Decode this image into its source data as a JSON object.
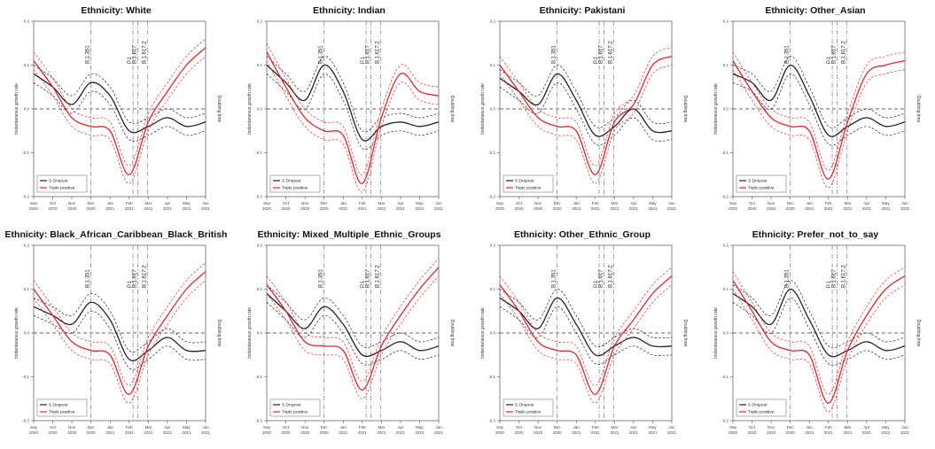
{
  "chart_data": {
    "type": "line",
    "x": [
      "Sep 2020",
      "Oct 2020",
      "Nov 2020",
      "Dec 2020",
      "Jan 2021",
      "Feb 2021",
      "Mar 2021",
      "Apr 2021",
      "May 2021",
      "Jun 2021"
    ],
    "ylabel": "Instantaneous growth rate",
    "y2label": "Doubling time",
    "xlim": [
      0,
      9
    ],
    "ylim": [
      -0.2,
      0.2
    ],
    "variants": [
      {
        "label": "B.1.351",
        "x": 3.0
      },
      {
        "label": "P.1",
        "x": 5.2
      },
      {
        "label": "B.1.617",
        "x": 5.45
      },
      {
        "label": "B.1.617.2",
        "x": 5.95
      }
    ],
    "legend": {
      "position": "bottom-left",
      "entries": [
        "S Dropout",
        "Triple positive"
      ]
    },
    "colors": {
      "s_dropout": "#222222",
      "triple_positive": "#e8242c"
    },
    "panels": [
      {
        "title": "Ethnicity: White",
        "series": [
          {
            "name": "S Dropout",
            "values": [
              0.08,
              0.05,
              0.01,
              0.06,
              0.03,
              -0.05,
              -0.04,
              -0.02,
              -0.04,
              -0.03
            ]
          },
          {
            "name": "Triple positive",
            "values": [
              0.11,
              0.05,
              -0.02,
              -0.04,
              -0.05,
              -0.15,
              -0.03,
              0.04,
              0.1,
              0.14
            ]
          }
        ]
      },
      {
        "title": "Ethnicity: Indian",
        "series": [
          {
            "name": "S Dropout",
            "values": [
              0.1,
              0.06,
              0.02,
              0.1,
              0.04,
              -0.07,
              -0.04,
              -0.03,
              -0.04,
              -0.03
            ]
          },
          {
            "name": "Triple positive",
            "values": [
              0.13,
              0.05,
              -0.02,
              -0.05,
              -0.06,
              -0.17,
              -0.02,
              0.08,
              0.04,
              0.03
            ]
          }
        ]
      },
      {
        "title": "Ethnicity: Pakistani",
        "series": [
          {
            "name": "S Dropout",
            "values": [
              0.07,
              0.04,
              0.01,
              0.08,
              0.02,
              -0.06,
              -0.04,
              0.0,
              -0.05,
              -0.05
            ]
          },
          {
            "name": "Triple positive",
            "values": [
              0.1,
              0.04,
              -0.02,
              -0.04,
              -0.05,
              -0.15,
              -0.03,
              0.01,
              0.1,
              0.12
            ]
          }
        ]
      },
      {
        "title": "Ethnicity: Other_Asian",
        "series": [
          {
            "name": "S Dropout",
            "values": [
              0.08,
              0.06,
              0.02,
              0.1,
              0.03,
              -0.06,
              -0.04,
              -0.02,
              -0.04,
              -0.03
            ]
          },
          {
            "name": "Triple positive",
            "values": [
              0.11,
              0.04,
              -0.02,
              -0.04,
              -0.05,
              -0.16,
              -0.03,
              0.08,
              0.1,
              0.11
            ]
          }
        ]
      },
      {
        "title": "Ethnicity: Black_African_Caribbean_Black_British",
        "series": [
          {
            "name": "S Dropout",
            "values": [
              0.06,
              0.04,
              0.02,
              0.07,
              0.03,
              -0.06,
              -0.04,
              -0.01,
              -0.04,
              -0.04
            ]
          },
          {
            "name": "Triple positive",
            "values": [
              0.1,
              0.04,
              -0.02,
              -0.04,
              -0.05,
              -0.14,
              -0.03,
              0.04,
              0.1,
              0.14
            ]
          }
        ]
      },
      {
        "title": "Ethnicity: Mixed_Multiple_Ethnic_Groups",
        "series": [
          {
            "name": "S Dropout",
            "values": [
              0.09,
              0.05,
              0.01,
              0.06,
              0.02,
              -0.05,
              -0.04,
              -0.02,
              -0.04,
              -0.03
            ]
          },
          {
            "name": "Triple positive",
            "values": [
              0.11,
              0.05,
              -0.02,
              -0.03,
              -0.04,
              -0.13,
              -0.03,
              0.04,
              0.1,
              0.15
            ]
          }
        ]
      },
      {
        "title": "Ethnicity: Other_Ethnic_Group",
        "series": [
          {
            "name": "S Dropout",
            "values": [
              0.08,
              0.05,
              0.01,
              0.08,
              0.02,
              -0.05,
              -0.03,
              -0.01,
              -0.03,
              -0.03
            ]
          },
          {
            "name": "Triple positive",
            "values": [
              0.11,
              0.05,
              -0.02,
              -0.04,
              -0.05,
              -0.14,
              -0.03,
              0.03,
              0.09,
              0.13
            ]
          }
        ]
      },
      {
        "title": "Ethnicity: Prefer_not_to_say",
        "series": [
          {
            "name": "S Dropout",
            "values": [
              0.09,
              0.06,
              0.02,
              0.1,
              0.03,
              -0.05,
              -0.04,
              -0.02,
              -0.04,
              -0.03
            ]
          },
          {
            "name": "Triple positive",
            "values": [
              0.12,
              0.05,
              -0.02,
              -0.04,
              -0.05,
              -0.16,
              -0.04,
              0.04,
              0.1,
              0.13
            ]
          }
        ]
      }
    ]
  }
}
